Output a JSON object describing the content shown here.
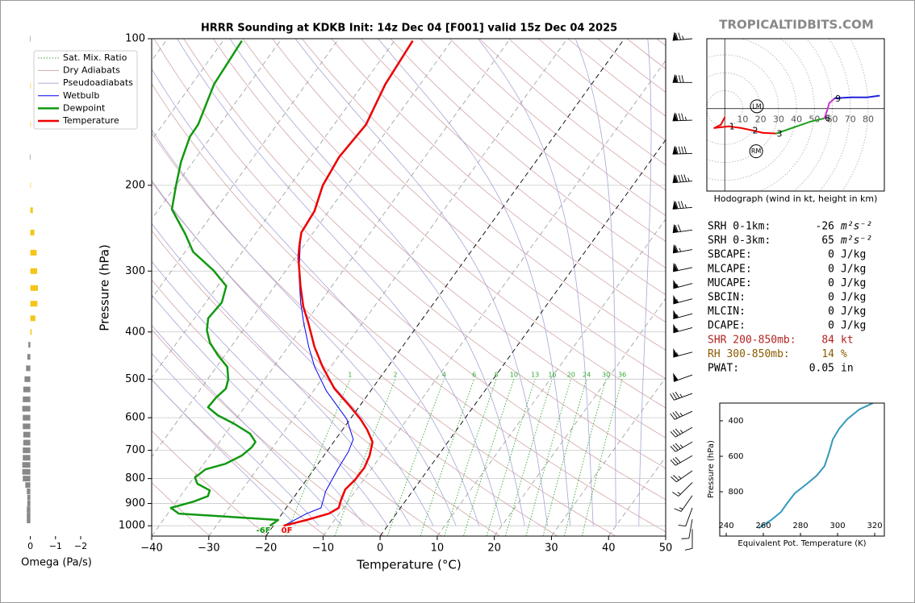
{
  "brand": "TROPICALTIDBITS.COM",
  "chart_data": [
    {
      "type": "skewt",
      "title": "HRRR Sounding at KDKB Init: 14z Dec 04 [F001] valid 15z Dec 04 2025",
      "xlabel": "Temperature (°C)",
      "ylabel": "Pressure (hPa)",
      "xlim": [
        -40,
        50
      ],
      "ylim": [
        1050,
        100
      ],
      "log_y": true,
      "xticks": [
        {
          "value": -40,
          "label": "−40"
        },
        {
          "value": -30,
          "label": "−30"
        },
        {
          "value": -20,
          "label": "−20"
        },
        {
          "value": -10,
          "label": "−10"
        },
        0,
        10,
        20,
        30,
        40,
        50
      ],
      "yticks": [
        100,
        200,
        300,
        400,
        500,
        600,
        700,
        800,
        900,
        1000
      ],
      "highlighted_isotherms": [
        -20,
        0
      ],
      "reference_lines": [
        {
          "name": "Sat. Mix. Ratio",
          "color": "#33aa33",
          "style": "dotted",
          "values": [
            1,
            2,
            4,
            6,
            8,
            10,
            13,
            16,
            20,
            24,
            30,
            36
          ]
        },
        {
          "name": "Dry Adiabats",
          "color": "#d4a5a5",
          "style": "solid"
        },
        {
          "name": "Pseudoadiabats",
          "color": "#a5a5d8",
          "style": "solid"
        }
      ],
      "series": [
        {
          "name": "Wetbulb",
          "color": "#0000ee",
          "width": 1,
          "pressure": [
            1000,
            944,
            919,
            850,
            760,
            705,
            665,
            604,
            529,
            472,
            429,
            383,
            348,
            304,
            252,
            226,
            200,
            175,
            150,
            124,
            101
          ],
          "values": [
            -18.2,
            -15.7,
            -13.9,
            -15.2,
            -15.9,
            -16.2,
            -16.9,
            -20.6,
            -27.7,
            -32.8,
            -36.4,
            -40.3,
            -43.4,
            -47.3,
            -52.0,
            -52.6,
            -54.4,
            -55.1,
            -54.5,
            -56.2,
            -56.9
          ]
        },
        {
          "name": "Dewpoint",
          "color": "#119911",
          "width": 2.5,
          "surface_label": "-6F",
          "pressure": [
            1000,
            973,
            944,
            919,
            892,
            869,
            846,
            820,
            796,
            766,
            746,
            718,
            691,
            673,
            647,
            617,
            593,
            571,
            545,
            523,
            500,
            472,
            446,
            421,
            397,
            375,
            348,
            322,
            299,
            274,
            252,
            224,
            200,
            179,
            159,
            150,
            124,
            101
          ],
          "values": [
            -20.6,
            -19.9,
            -38.1,
            -40.2,
            -37.0,
            -35.2,
            -35.6,
            -38.6,
            -39.8,
            -39.0,
            -36.2,
            -34.4,
            -33.7,
            -33.7,
            -35.7,
            -39.8,
            -43.7,
            -46.4,
            -46.2,
            -45.6,
            -46.4,
            -48.1,
            -51.3,
            -54.2,
            -56.3,
            -57.6,
            -57.2,
            -58.5,
            -62.7,
            -68.6,
            -72.2,
            -77.7,
            -80.0,
            -82.1,
            -83.7,
            -83.8,
            -86.1,
            -86.7
          ]
        },
        {
          "name": "Temperature",
          "color": "#ee0000",
          "width": 2.5,
          "surface_label": "0F",
          "pressure": [
            1000,
            973,
            944,
            919,
            885,
            842,
            805,
            760,
            718,
            673,
            635,
            604,
            571,
            523,
            472,
            429,
            383,
            355,
            322,
            282,
            266,
            250,
            226,
            200,
            175,
            150,
            124,
            101
          ],
          "values": [
            -18.2,
            -14.9,
            -11.8,
            -10.8,
            -11.4,
            -12.0,
            -11.5,
            -11.4,
            -12.0,
            -13.2,
            -15.7,
            -18.2,
            -21.4,
            -26.6,
            -31.4,
            -35.4,
            -39.5,
            -42.4,
            -45.5,
            -49.4,
            -50.8,
            -52.1,
            -52.5,
            -54.3,
            -55.0,
            -54.4,
            -56.1,
            -56.8
          ]
        }
      ],
      "barbs": {
        "pressure": [
          100,
          123,
          147,
          172,
          196,
          222,
          247,
          271,
          295,
          318,
          342,
          367,
          392,
          440,
          490,
          535,
          582,
          628,
          673,
          718,
          771,
          815,
          867,
          919,
          970,
          1016
        ],
        "speed": [
          75,
          80,
          85,
          90,
          95,
          85,
          70,
          65,
          60,
          55,
          55,
          55,
          55,
          55,
          50,
          35,
          35,
          35,
          35,
          30,
          25,
          15,
          15,
          10,
          10,
          10
        ],
        "direction": [
          265,
          270,
          268,
          268,
          265,
          265,
          262,
          260,
          258,
          255,
          255,
          255,
          255,
          255,
          250,
          250,
          245,
          240,
          240,
          240,
          235,
          225,
          215,
          200,
          190,
          180
        ]
      }
    },
    {
      "type": "omega",
      "xlabel": "Omega (Pa/s)",
      "xlim": [
        0.5,
        -2
      ],
      "ylim": [
        1050,
        100
      ],
      "xticks": [
        0,
        {
          "value": -1,
          "label": "−1"
        },
        {
          "value": -2,
          "label": "−2"
        }
      ],
      "positive_color": "#888888",
      "negative_color": "#f5c518",
      "pressure": [
        100,
        125,
        150,
        175,
        200,
        225,
        250,
        275,
        300,
        325,
        350,
        375,
        400,
        425,
        450,
        475,
        500,
        525,
        550,
        575,
        600,
        625,
        650,
        675,
        700,
        725,
        750,
        775,
        800,
        825,
        850,
        875,
        900,
        925,
        950,
        975
      ],
      "values": [
        0.02,
        -0.02,
        -0.02,
        0.02,
        -0.02,
        -0.1,
        -0.16,
        -0.25,
        -0.27,
        -0.3,
        -0.28,
        -0.2,
        -0.05,
        0.08,
        0.12,
        0.17,
        0.23,
        0.28,
        0.3,
        0.32,
        0.3,
        0.3,
        0.28,
        0.28,
        0.3,
        0.3,
        0.32,
        0.32,
        0.3,
        0.2,
        0.14,
        0.12,
        0.12,
        0.14,
        0.14,
        0.14
      ]
    },
    {
      "type": "hodograph",
      "caption": "Hodograph (wind in kt, height in km)",
      "xlim": [
        -10,
        89
      ],
      "ylim": [
        -46,
        39
      ],
      "rings": [
        10,
        20,
        30,
        40,
        50,
        60,
        70,
        80
      ],
      "heights": [
        0,
        0.25,
        0.5,
        1,
        1.5,
        2,
        2.5,
        3,
        4,
        5,
        6,
        7,
        8,
        9,
        10,
        11,
        12
      ],
      "u": [
        0,
        -2.2,
        -5.8,
        2.2,
        9,
        15.2,
        21.1,
        28.7,
        39,
        48,
        55.6,
        57,
        58.3,
        61.4,
        70.4,
        79.4,
        86.1
      ],
      "v": [
        -4.9,
        -9,
        -10.8,
        -9.9,
        -10.8,
        -12.1,
        -13.5,
        -13.9,
        -10.3,
        -7.2,
        -5.4,
        -1.3,
        3.1,
        5.8,
        6.3,
        6.3,
        7.2
      ],
      "segment_colors": [
        "#ee0000",
        "#ee0000",
        "#ee0000",
        "#ee0000",
        "#ee0000",
        "#ee0000",
        "#ee0000",
        "#22a022",
        "#22a022",
        "#22a022",
        "#cc33cc",
        "#cc33cc",
        "#cc33cc",
        "#2222dd",
        "#2222dd",
        "#2222dd"
      ],
      "height_labels": [
        1,
        2,
        3,
        6,
        9
      ],
      "storm_motions": [
        {
          "label": "LM",
          "u": 17.9,
          "v": 1.3
        },
        {
          "label": "RM",
          "u": 17.5,
          "v": -23.8
        }
      ]
    },
    {
      "type": "line",
      "xlabel": "Equivalent Pot. Temperature (K)",
      "ylabel": "Pressure (hPa)",
      "xlim": [
        236.5,
        325.2
      ],
      "ylim": [
        1050,
        300
      ],
      "xticks": [
        240,
        260,
        280,
        300,
        320
      ],
      "yticks": [
        400,
        600,
        800
      ],
      "series": [
        {
          "color": "#3399bb",
          "x": [
            257.4,
            264.3,
            269.5,
            272.6,
            276.9,
            283.5,
            288.7,
            293.0,
            295.6,
            297.4,
            300.8,
            305.2,
            311.7,
            319.1
          ],
          "y": [
            1005,
            959,
            914,
            868,
            809,
            755,
            709,
            655,
            573,
            505,
            445,
            391,
            336,
            300
          ]
        }
      ]
    }
  ],
  "stats": [
    {
      "label": "SRH 0-1km:",
      "value": -26,
      "unit": "m²s⁻²",
      "color": "#000000"
    },
    {
      "label": "SRH 0-3km:",
      "value": 65,
      "unit": "m²s⁻²",
      "color": "#000000"
    },
    {
      "label": "SBCAPE:",
      "value": 0,
      "unit": "J/kg",
      "color": "#000000"
    },
    {
      "label": "MLCAPE:",
      "value": 0,
      "unit": "J/kg",
      "color": "#000000"
    },
    {
      "label": "MUCAPE:",
      "value": 0,
      "unit": "J/kg",
      "color": "#000000"
    },
    {
      "label": "SBCIN:",
      "value": 0,
      "unit": "J/kg",
      "color": "#000000"
    },
    {
      "label": "MLCIN:",
      "value": 0,
      "unit": "J/kg",
      "color": "#000000"
    },
    {
      "label": "DCAPE:",
      "value": 0,
      "unit": "J/kg",
      "color": "#000000"
    },
    {
      "label": "SHR 200-850mb:",
      "value": 84,
      "unit": "kt",
      "color": "#b22222"
    },
    {
      "label": "RH 300-850mb:",
      "value": 14,
      "unit": "%",
      "color": "#8b5a00"
    },
    {
      "label": "PWAT:",
      "value": 0.05,
      "unit": "in",
      "color": "#000000"
    }
  ]
}
